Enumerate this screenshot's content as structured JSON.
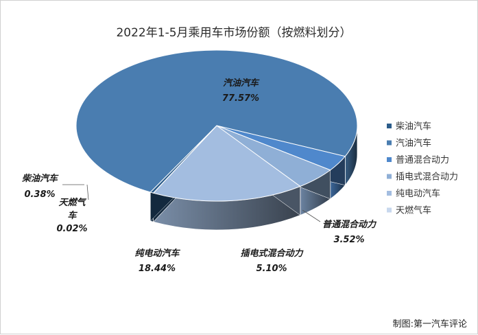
{
  "chart_data": {
    "type": "pie",
    "title": "2022年1-5月乘用车市场份额（按燃料划分）",
    "categories": [
      "柴油汽车",
      "汽油汽车",
      "普通混合动力",
      "插电式混合动力",
      "纯电动汽车",
      "天燃气车"
    ],
    "values": [
      0.38,
      77.57,
      3.52,
      5.1,
      18.44,
      0.02
    ],
    "value_labels": [
      "0.38%",
      "77.57%",
      "3.52%",
      "5.10%",
      "18.44%",
      "0.02%"
    ],
    "colors": [
      "#2b5c8a",
      "#4a7db0",
      "#4f88cc",
      "#8fafd6",
      "#a3bde0",
      "#c8d8ee"
    ],
    "legend_position": "right",
    "style": "3d"
  },
  "credit": "制图:第一汽车评论"
}
